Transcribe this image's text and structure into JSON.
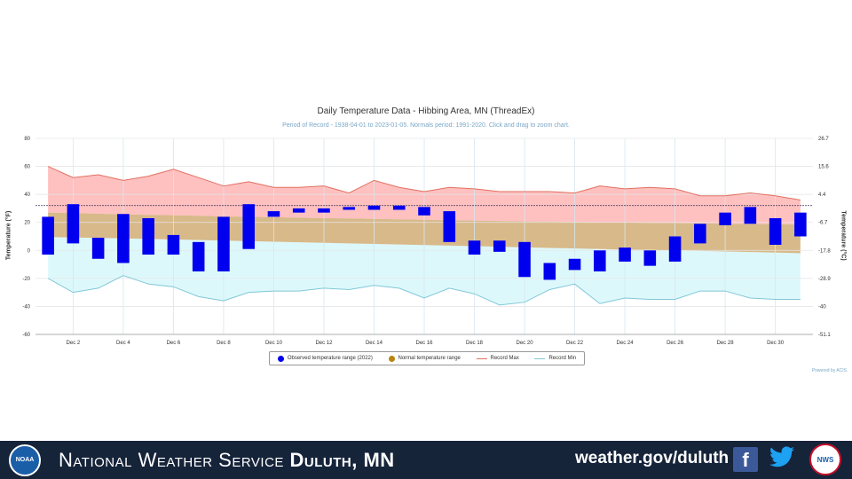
{
  "chart_data": {
    "type": "bar",
    "title": "Daily Temperature Data - Hibbing Area, MN (ThreadEx)",
    "subtitle": "Period of Record - 1938-04-01 to 2023-01-05. Normals period: 1991-2020. Click and drag to zoom chart.",
    "ylabel_left": "Temperature (°F)",
    "ylabel_right": "Temperature (°C)",
    "ylim": [
      -60,
      80
    ],
    "yticks_left": [
      "80",
      "60",
      "40",
      "20",
      "0",
      "-20",
      "-40",
      "-60"
    ],
    "yticks_right": [
      "26.7",
      "15.6",
      "4.4",
      "-6.7",
      "-17.8",
      "-28.9",
      "-40",
      "-51.1"
    ],
    "x_tick_labels": [
      "Dec 2",
      "Dec 4",
      "Dec 6",
      "Dec 8",
      "Dec 10",
      "Dec 12",
      "Dec 14",
      "Dec 16",
      "Dec 18",
      "Dec 20",
      "Dec 22",
      "Dec 24",
      "Dec 26",
      "Dec 28",
      "Dec 30"
    ],
    "days": [
      1,
      2,
      3,
      4,
      5,
      6,
      7,
      8,
      9,
      10,
      11,
      12,
      13,
      14,
      15,
      16,
      17,
      18,
      19,
      20,
      21,
      22,
      23,
      24,
      25,
      26,
      27,
      28,
      29,
      30,
      31
    ],
    "observed_high": [
      24,
      33,
      9,
      26,
      23,
      11,
      6,
      24,
      33,
      28,
      30,
      30,
      31,
      32,
      32,
      31,
      28,
      7,
      7,
      6,
      -9,
      -6,
      0,
      2,
      0,
      10,
      19,
      27,
      31,
      23,
      27
    ],
    "observed_low": [
      -3,
      5,
      -6,
      -9,
      -3,
      -3,
      -15,
      -15,
      1,
      24,
      27,
      27,
      29,
      29,
      29,
      25,
      6,
      -3,
      -1,
      -19,
      -21,
      -14,
      -15,
      -8,
      -11,
      -8,
      5,
      18,
      19,
      4,
      10
    ],
    "normal_high": [
      27,
      26.6,
      26.2,
      25.8,
      25.4,
      25.1,
      24.7,
      24.3,
      24.0,
      23.7,
      23.4,
      23.1,
      22.8,
      22.5,
      22.2,
      21.9,
      21.6,
      21.3,
      21.0,
      20.7,
      20.5,
      20.3,
      20.1,
      19.9,
      19.7,
      19.5,
      19.3,
      19.1,
      18.9,
      18.7,
      18.5
    ],
    "normal_low": [
      9.5,
      9.2,
      8.9,
      8.6,
      8.2,
      7.8,
      7.4,
      7.0,
      6.6,
      6.2,
      5.8,
      5.4,
      5.0,
      4.6,
      4.2,
      3.8,
      3.4,
      3.0,
      2.6,
      2.2,
      1.8,
      1.4,
      1.0,
      0.6,
      0.3,
      0.0,
      -0.4,
      -0.8,
      -1.2,
      -1.6,
      -2.0
    ],
    "record_max": [
      60,
      52,
      54,
      50,
      53,
      58,
      52,
      46,
      49,
      45,
      45,
      46,
      41,
      50,
      45,
      42,
      45,
      44,
      42,
      42,
      42,
      41,
      46,
      44,
      45,
      44,
      39,
      39,
      41,
      39,
      36
    ],
    "record_min": [
      -20,
      -30,
      -27,
      -18,
      -24,
      -26,
      -33,
      -36,
      -30,
      -29,
      -29,
      -27,
      -28,
      -25,
      -27,
      -34,
      -27,
      -31,
      -39,
      -37,
      -28,
      -24,
      -38,
      -34,
      -35,
      -35,
      -29,
      -29,
      -34,
      -35,
      -35
    ],
    "reference_line": 32,
    "colors": {
      "observed": "#0000ee",
      "normal": "#b8860b",
      "record_max": "#e07060",
      "record_min": "#80c8d8"
    },
    "legend_entries": [
      "Observed temperature range (2022)",
      "Normal temperature range",
      "Record Max",
      "Record Min"
    ],
    "credit": "Powered by ACIS"
  },
  "footer": {
    "noaa_logo_text": "NOAA",
    "agency_prefix": "National Weather Service ",
    "office": "Duluth, MN",
    "website": "weather.gov/duluth",
    "facebook_icon": "facebook-icon",
    "twitter_icon": "twitter-icon",
    "nws_logo": "nws-logo"
  }
}
